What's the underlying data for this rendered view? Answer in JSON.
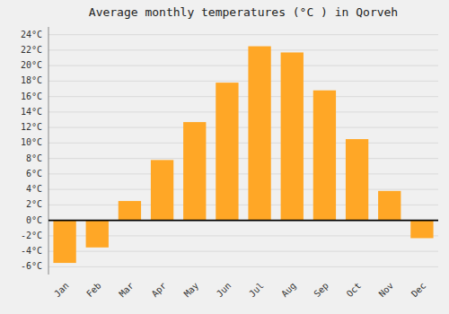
{
  "chart_data": {
    "type": "bar",
    "title": "Average monthly temperatures (°C ) in Qorveh",
    "categories": [
      "Jan",
      "Feb",
      "Mar",
      "Apr",
      "May",
      "Jun",
      "Jul",
      "Aug",
      "Sep",
      "Oct",
      "Nov",
      "Dec"
    ],
    "values": [
      -5.5,
      -3.5,
      2.5,
      7.8,
      12.7,
      17.8,
      22.5,
      21.7,
      16.8,
      10.5,
      3.8,
      -2.3
    ],
    "color": "#FFA726",
    "ylim": [
      -7,
      25
    ],
    "yticks": [
      {
        "value": -6,
        "label": "-6°C"
      },
      {
        "value": -4,
        "label": "-4°C"
      },
      {
        "value": -2,
        "label": "-2°C"
      },
      {
        "value": 0,
        "label": "0°C"
      },
      {
        "value": 2,
        "label": "2°C"
      },
      {
        "value": 4,
        "label": "4°C"
      },
      {
        "value": 6,
        "label": "6°C"
      },
      {
        "value": 8,
        "label": "8°C"
      },
      {
        "value": 10,
        "label": "10°C"
      },
      {
        "value": 12,
        "label": "12°C"
      },
      {
        "value": 14,
        "label": "14°C"
      },
      {
        "value": 16,
        "label": "16°C"
      },
      {
        "value": 18,
        "label": "18°C"
      },
      {
        "value": 20,
        "label": "20°C"
      },
      {
        "value": 22,
        "label": "22°C"
      },
      {
        "value": 24,
        "label": "24°C"
      }
    ],
    "grid": true
  }
}
